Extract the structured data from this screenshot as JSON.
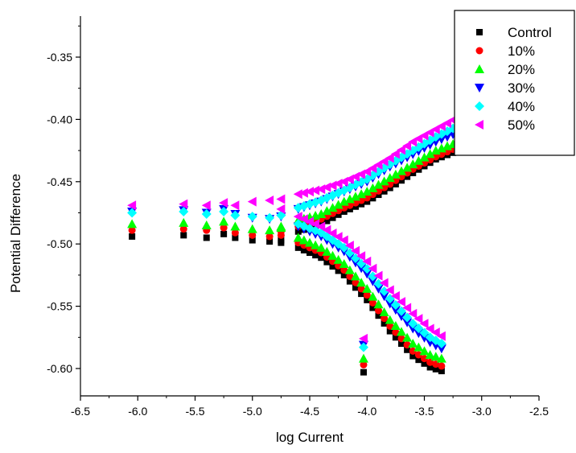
{
  "chart_data": {
    "type": "scatter",
    "title": "",
    "xlabel": "log Current",
    "ylabel": "Potential Difference",
    "xlim": [
      -6.5,
      -2.5
    ],
    "ylim": [
      -0.625,
      -0.345
    ],
    "xticks": [
      -6.5,
      -6.0,
      -5.5,
      -5.0,
      -4.5,
      -4.0,
      -3.5,
      -3.0,
      -2.5
    ],
    "xtick_labels": [
      "-6.5",
      "-6.0",
      "-5.5",
      "-5.0",
      "-4.5",
      "-4.0",
      "-3.5",
      "-3.0",
      "-2.5"
    ],
    "yticks": [
      -0.35,
      -0.4,
      -0.45,
      -0.5,
      -0.55,
      -0.6
    ],
    "ytick_labels": [
      "-0.35",
      "-0.40",
      "-0.45",
      "-0.50",
      "-0.55",
      "-0.60"
    ],
    "grid": false,
    "legend_position": "top-right",
    "series": [
      {
        "name": "Control",
        "marker": "square",
        "color": "#000000",
        "ecorr": -0.497,
        "upper": [
          [
            -6.05,
            -0.494
          ],
          [
            -5.6,
            -0.493
          ],
          [
            -5.4,
            -0.495
          ],
          [
            -5.25,
            -0.492
          ],
          [
            -5.15,
            -0.495
          ],
          [
            -5.0,
            -0.497
          ],
          [
            -4.85,
            -0.498
          ],
          [
            -4.75,
            -0.499
          ],
          [
            -4.6,
            -0.49
          ],
          [
            -4.4,
            -0.484
          ],
          [
            -4.2,
            -0.474
          ],
          [
            -4.0,
            -0.466
          ],
          [
            -3.8,
            -0.455
          ],
          [
            -3.6,
            -0.443
          ],
          [
            -3.4,
            -0.432
          ],
          [
            -3.2,
            -0.425
          ]
        ],
        "lower": [
          [
            -4.6,
            -0.503
          ],
          [
            -4.4,
            -0.511
          ],
          [
            -4.2,
            -0.525
          ],
          [
            -4.0,
            -0.545
          ],
          [
            -3.8,
            -0.57
          ],
          [
            -3.6,
            -0.59
          ],
          [
            -3.45,
            -0.599
          ],
          [
            -3.35,
            -0.602
          ]
        ],
        "outliers": [
          [
            -4.03,
            -0.603
          ]
        ]
      },
      {
        "name": "10%",
        "marker": "circle",
        "color": "#ff0000",
        "ecorr": -0.49,
        "upper": [
          [
            -6.05,
            -0.489
          ],
          [
            -5.6,
            -0.488
          ],
          [
            -5.4,
            -0.489
          ],
          [
            -5.25,
            -0.487
          ],
          [
            -5.15,
            -0.491
          ],
          [
            -5.0,
            -0.493
          ],
          [
            -4.85,
            -0.494
          ],
          [
            -4.75,
            -0.493
          ],
          [
            -4.6,
            -0.486
          ],
          [
            -4.4,
            -0.48
          ],
          [
            -4.2,
            -0.471
          ],
          [
            -4.0,
            -0.463
          ],
          [
            -3.8,
            -0.452
          ],
          [
            -3.6,
            -0.44
          ],
          [
            -3.4,
            -0.43
          ],
          [
            -3.2,
            -0.422
          ]
        ],
        "lower": [
          [
            -4.6,
            -0.499
          ],
          [
            -4.4,
            -0.507
          ],
          [
            -4.2,
            -0.521
          ],
          [
            -4.0,
            -0.541
          ],
          [
            -3.8,
            -0.566
          ],
          [
            -3.6,
            -0.586
          ],
          [
            -3.45,
            -0.595
          ],
          [
            -3.35,
            -0.598
          ]
        ],
        "outliers": [
          [
            -4.03,
            -0.597
          ]
        ]
      },
      {
        "name": "20%",
        "marker": "triangle-up",
        "color": "#00ff00",
        "ecorr": -0.486,
        "upper": [
          [
            -6.05,
            -0.484
          ],
          [
            -5.6,
            -0.483
          ],
          [
            -5.4,
            -0.485
          ],
          [
            -5.25,
            -0.482
          ],
          [
            -5.15,
            -0.486
          ],
          [
            -5.0,
            -0.488
          ],
          [
            -4.85,
            -0.489
          ],
          [
            -4.75,
            -0.487
          ],
          [
            -4.6,
            -0.481
          ],
          [
            -4.4,
            -0.476
          ],
          [
            -4.2,
            -0.466
          ],
          [
            -4.0,
            -0.458
          ],
          [
            -3.8,
            -0.447
          ],
          [
            -3.6,
            -0.436
          ],
          [
            -3.4,
            -0.425
          ],
          [
            -3.2,
            -0.418
          ]
        ],
        "lower": [
          [
            -4.6,
            -0.495
          ],
          [
            -4.4,
            -0.503
          ],
          [
            -4.2,
            -0.516
          ],
          [
            -4.0,
            -0.536
          ],
          [
            -3.8,
            -0.561
          ],
          [
            -3.6,
            -0.58
          ],
          [
            -3.45,
            -0.589
          ],
          [
            -3.35,
            -0.592
          ]
        ],
        "outliers": [
          [
            -4.03,
            -0.592
          ]
        ]
      },
      {
        "name": "30%",
        "marker": "triangle-down",
        "color": "#0000ff",
        "ecorr": -0.478,
        "upper": [
          [
            -6.05,
            -0.474
          ],
          [
            -5.6,
            -0.473
          ],
          [
            -5.4,
            -0.475
          ],
          [
            -5.25,
            -0.472
          ],
          [
            -5.15,
            -0.476
          ],
          [
            -5.0,
            -0.479
          ],
          [
            -4.85,
            -0.48
          ],
          [
            -4.75,
            -0.478
          ],
          [
            -4.6,
            -0.472
          ],
          [
            -4.4,
            -0.466
          ],
          [
            -4.2,
            -0.458
          ],
          [
            -4.0,
            -0.45
          ],
          [
            -3.8,
            -0.438
          ],
          [
            -3.6,
            -0.428
          ],
          [
            -3.4,
            -0.418
          ],
          [
            -3.2,
            -0.41
          ]
        ],
        "lower": [
          [
            -4.6,
            -0.486
          ],
          [
            -4.4,
            -0.494
          ],
          [
            -4.2,
            -0.506
          ],
          [
            -4.0,
            -0.524
          ],
          [
            -3.8,
            -0.548
          ],
          [
            -3.6,
            -0.568
          ],
          [
            -3.45,
            -0.579
          ],
          [
            -3.35,
            -0.584
          ]
        ],
        "outliers": [
          [
            -4.03,
            -0.581
          ]
        ]
      },
      {
        "name": "40%",
        "marker": "diamond",
        "color": "#00ffff",
        "ecorr": -0.477,
        "upper": [
          [
            -6.05,
            -0.475
          ],
          [
            -5.6,
            -0.474
          ],
          [
            -5.4,
            -0.476
          ],
          [
            -5.25,
            -0.474
          ],
          [
            -5.15,
            -0.477
          ],
          [
            -5.0,
            -0.478
          ],
          [
            -4.85,
            -0.479
          ],
          [
            -4.75,
            -0.477
          ],
          [
            -4.6,
            -0.471
          ],
          [
            -4.4,
            -0.465
          ],
          [
            -4.2,
            -0.457
          ],
          [
            -4.0,
            -0.448
          ],
          [
            -3.8,
            -0.436
          ],
          [
            -3.6,
            -0.425
          ],
          [
            -3.4,
            -0.414
          ],
          [
            -3.2,
            -0.405
          ]
        ],
        "lower": [
          [
            -4.6,
            -0.484
          ],
          [
            -4.4,
            -0.491
          ],
          [
            -4.2,
            -0.503
          ],
          [
            -4.0,
            -0.52
          ],
          [
            -3.8,
            -0.544
          ],
          [
            -3.6,
            -0.564
          ],
          [
            -3.45,
            -0.575
          ],
          [
            -3.35,
            -0.58
          ]
        ],
        "outliers": [
          [
            -4.03,
            -0.583
          ]
        ]
      },
      {
        "name": "50%",
        "marker": "triangle-left",
        "color": "#ff00ff",
        "ecorr": -0.472,
        "upper": [
          [
            -6.05,
            -0.469
          ],
          [
            -5.6,
            -0.468
          ],
          [
            -5.4,
            -0.469
          ],
          [
            -5.25,
            -0.467
          ],
          [
            -5.15,
            -0.469
          ],
          [
            -5.0,
            -0.466
          ],
          [
            -4.85,
            -0.465
          ],
          [
            -4.75,
            -0.464
          ],
          [
            -4.6,
            -0.46
          ],
          [
            -4.4,
            -0.456
          ],
          [
            -4.2,
            -0.45
          ],
          [
            -4.0,
            -0.442
          ],
          [
            -3.8,
            -0.431
          ],
          [
            -3.6,
            -0.418
          ],
          [
            -3.4,
            -0.408
          ],
          [
            -3.2,
            -0.398
          ]
        ],
        "lower": [
          [
            -4.6,
            -0.478
          ],
          [
            -4.4,
            -0.486
          ],
          [
            -4.2,
            -0.497
          ],
          [
            -4.0,
            -0.514
          ],
          [
            -3.8,
            -0.537
          ],
          [
            -3.6,
            -0.556
          ],
          [
            -3.45,
            -0.568
          ],
          [
            -3.35,
            -0.574
          ]
        ],
        "outliers": [
          [
            -4.03,
            -0.576
          ]
        ]
      }
    ]
  }
}
